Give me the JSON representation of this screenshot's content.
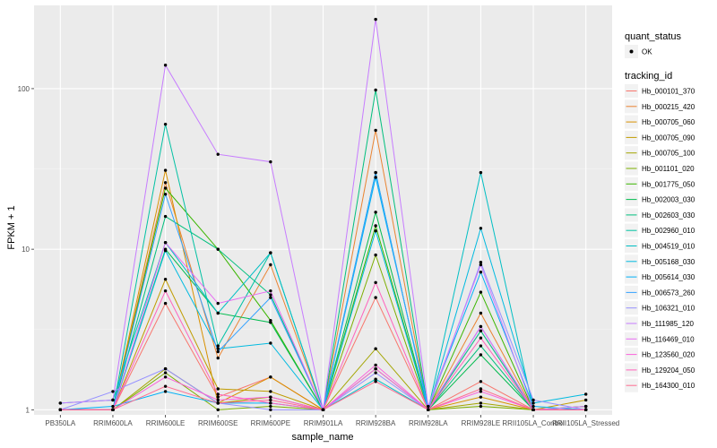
{
  "chart_data": {
    "type": "line",
    "xlabel": "sample_name",
    "ylabel": "FPKM + 1",
    "y_scale": "log10",
    "ylim": [
      0.93,
      330
    ],
    "y_ticks": [
      1,
      10,
      100
    ],
    "y_tick_labels": [
      "1",
      "10",
      "100"
    ],
    "categories": [
      "PB350LA",
      "RRIM600LA",
      "RRIM600LE",
      "RRIM600SE",
      "RRIM600PE",
      "RRIM901LA",
      "RRIM928BA",
      "RRIM928LA",
      "RRIM928LE",
      "RRII105LA_Control",
      "RRII105LA_Stressed"
    ],
    "grid": true,
    "legend_position": "right",
    "legends": [
      {
        "title": "quant_status",
        "entries": [
          "OK"
        ]
      },
      {
        "title": "tracking_id",
        "entries": [
          "Hb_000101_370",
          "Hb_000215_420",
          "Hb_000705_060",
          "Hb_000705_090",
          "Hb_000705_100",
          "Hb_001101_020",
          "Hb_001775_050",
          "Hb_002003_030",
          "Hb_002603_030",
          "Hb_002960_010",
          "Hb_004519_010",
          "Hb_005168_030",
          "Hb_005614_030",
          "Hb_006573_260",
          "Hb_106321_010",
          "Hb_111985_120",
          "Hb_116469_010",
          "Hb_123560_020",
          "Hb_129204_050",
          "Hb_164300_010"
        ]
      }
    ],
    "series": [
      {
        "name": "Hb_000101_370",
        "color": "#F8766D",
        "values": [
          1.0,
          1.0,
          4.6,
          1.2,
          1.6,
          1.0,
          5.0,
          1.0,
          1.5,
          1.0,
          1.0
        ]
      },
      {
        "name": "Hb_000215_420",
        "color": "#EA8331",
        "values": [
          1.0,
          1.0,
          26.0,
          2.1,
          8.0,
          1.0,
          55.0,
          1.0,
          4.0,
          1.0,
          1.05
        ]
      },
      {
        "name": "Hb_000705_060",
        "color": "#D89000",
        "values": [
          1.0,
          1.0,
          31.0,
          1.1,
          1.6,
          1.0,
          1.8,
          1.0,
          1.2,
          1.0,
          1.0
        ]
      },
      {
        "name": "Hb_000705_090",
        "color": "#C09B00",
        "values": [
          1.0,
          1.0,
          6.5,
          1.35,
          1.3,
          1.0,
          1.8,
          1.0,
          3.1,
          1.0,
          1.15
        ]
      },
      {
        "name": "Hb_000705_100",
        "color": "#A3A500",
        "values": [
          1.0,
          1.0,
          1.8,
          1.1,
          1.2,
          1.0,
          2.4,
          1.0,
          1.1,
          1.0,
          1.0
        ]
      },
      {
        "name": "Hb_001101_020",
        "color": "#7CAE00",
        "values": [
          1.0,
          1.0,
          1.7,
          1.0,
          1.05,
          1.0,
          9.2,
          1.0,
          1.05,
          1.0,
          1.0
        ]
      },
      {
        "name": "Hb_001775_050",
        "color": "#39B600",
        "values": [
          1.0,
          1.0,
          24.0,
          10.0,
          3.6,
          1.0,
          14.0,
          1.0,
          5.4,
          1.0,
          1.05
        ]
      },
      {
        "name": "Hb_002003_030",
        "color": "#00BB4E",
        "values": [
          1.0,
          1.0,
          10.0,
          4.0,
          3.5,
          1.0,
          17.0,
          1.0,
          2.2,
          1.0,
          1.0
        ]
      },
      {
        "name": "Hb_002603_030",
        "color": "#00BF7D",
        "values": [
          1.0,
          1.0,
          16.0,
          10.0,
          5.2,
          1.0,
          98.0,
          1.0,
          2.5,
          1.0,
          1.0
        ]
      },
      {
        "name": "Hb_002960_010",
        "color": "#00C1A3",
        "values": [
          1.0,
          1.0,
          60.0,
          2.5,
          9.5,
          1.0,
          30.0,
          1.0,
          3.1,
          1.0,
          1.0
        ]
      },
      {
        "name": "Hb_004519_010",
        "color": "#00BFC4",
        "values": [
          1.1,
          1.15,
          11.0,
          4.0,
          9.5,
          1.0,
          1.55,
          1.0,
          30.0,
          1.0,
          1.0
        ]
      },
      {
        "name": "Hb_005168_030",
        "color": "#00BAE0",
        "values": [
          1.0,
          1.0,
          9.8,
          2.4,
          2.6,
          1.0,
          13.0,
          1.0,
          13.5,
          1.1,
          1.25
        ]
      },
      {
        "name": "Hb_005614_030",
        "color": "#00B0F6",
        "values": [
          1.0,
          1.05,
          1.3,
          1.1,
          1.1,
          1.0,
          28.0,
          1.05,
          7.2,
          1.05,
          1.0
        ]
      },
      {
        "name": "Hb_006573_260",
        "color": "#35A2FF",
        "values": [
          1.0,
          1.0,
          22.0,
          2.3,
          5.0,
          1.0,
          30.0,
          1.0,
          3.3,
          1.0,
          1.0
        ]
      },
      {
        "name": "Hb_106321_010",
        "color": "#9590FF",
        "values": [
          1.0,
          1.3,
          1.8,
          1.1,
          1.0,
          1.0,
          1.7,
          1.0,
          8.3,
          1.15,
          1.0
        ]
      },
      {
        "name": "Hb_111985_120",
        "color": "#C77CFF",
        "values": [
          1.1,
          1.15,
          140.0,
          39.0,
          35.0,
          1.0,
          270.0,
          1.05,
          8.0,
          1.0,
          1.05
        ]
      },
      {
        "name": "Hb_116469_010",
        "color": "#E76BF3",
        "values": [
          1.0,
          1.0,
          11.0,
          4.6,
          5.5,
          1.0,
          1.8,
          1.0,
          3.3,
          1.0,
          1.0
        ]
      },
      {
        "name": "Hb_123560_020",
        "color": "#FA62DB",
        "values": [
          1.0,
          1.0,
          1.6,
          1.15,
          1.2,
          1.0,
          1.9,
          1.0,
          1.3,
          1.0,
          1.0
        ]
      },
      {
        "name": "Hb_129204_050",
        "color": "#FF62BC",
        "values": [
          1.0,
          1.0,
          5.5,
          1.25,
          1.1,
          1.0,
          6.2,
          1.0,
          2.8,
          1.0,
          1.0
        ]
      },
      {
        "name": "Hb_164300_010",
        "color": "#FF6C91",
        "values": [
          1.0,
          1.0,
          1.4,
          1.1,
          1.15,
          1.0,
          1.5,
          1.0,
          1.35,
          1.0,
          1.0
        ]
      }
    ]
  }
}
